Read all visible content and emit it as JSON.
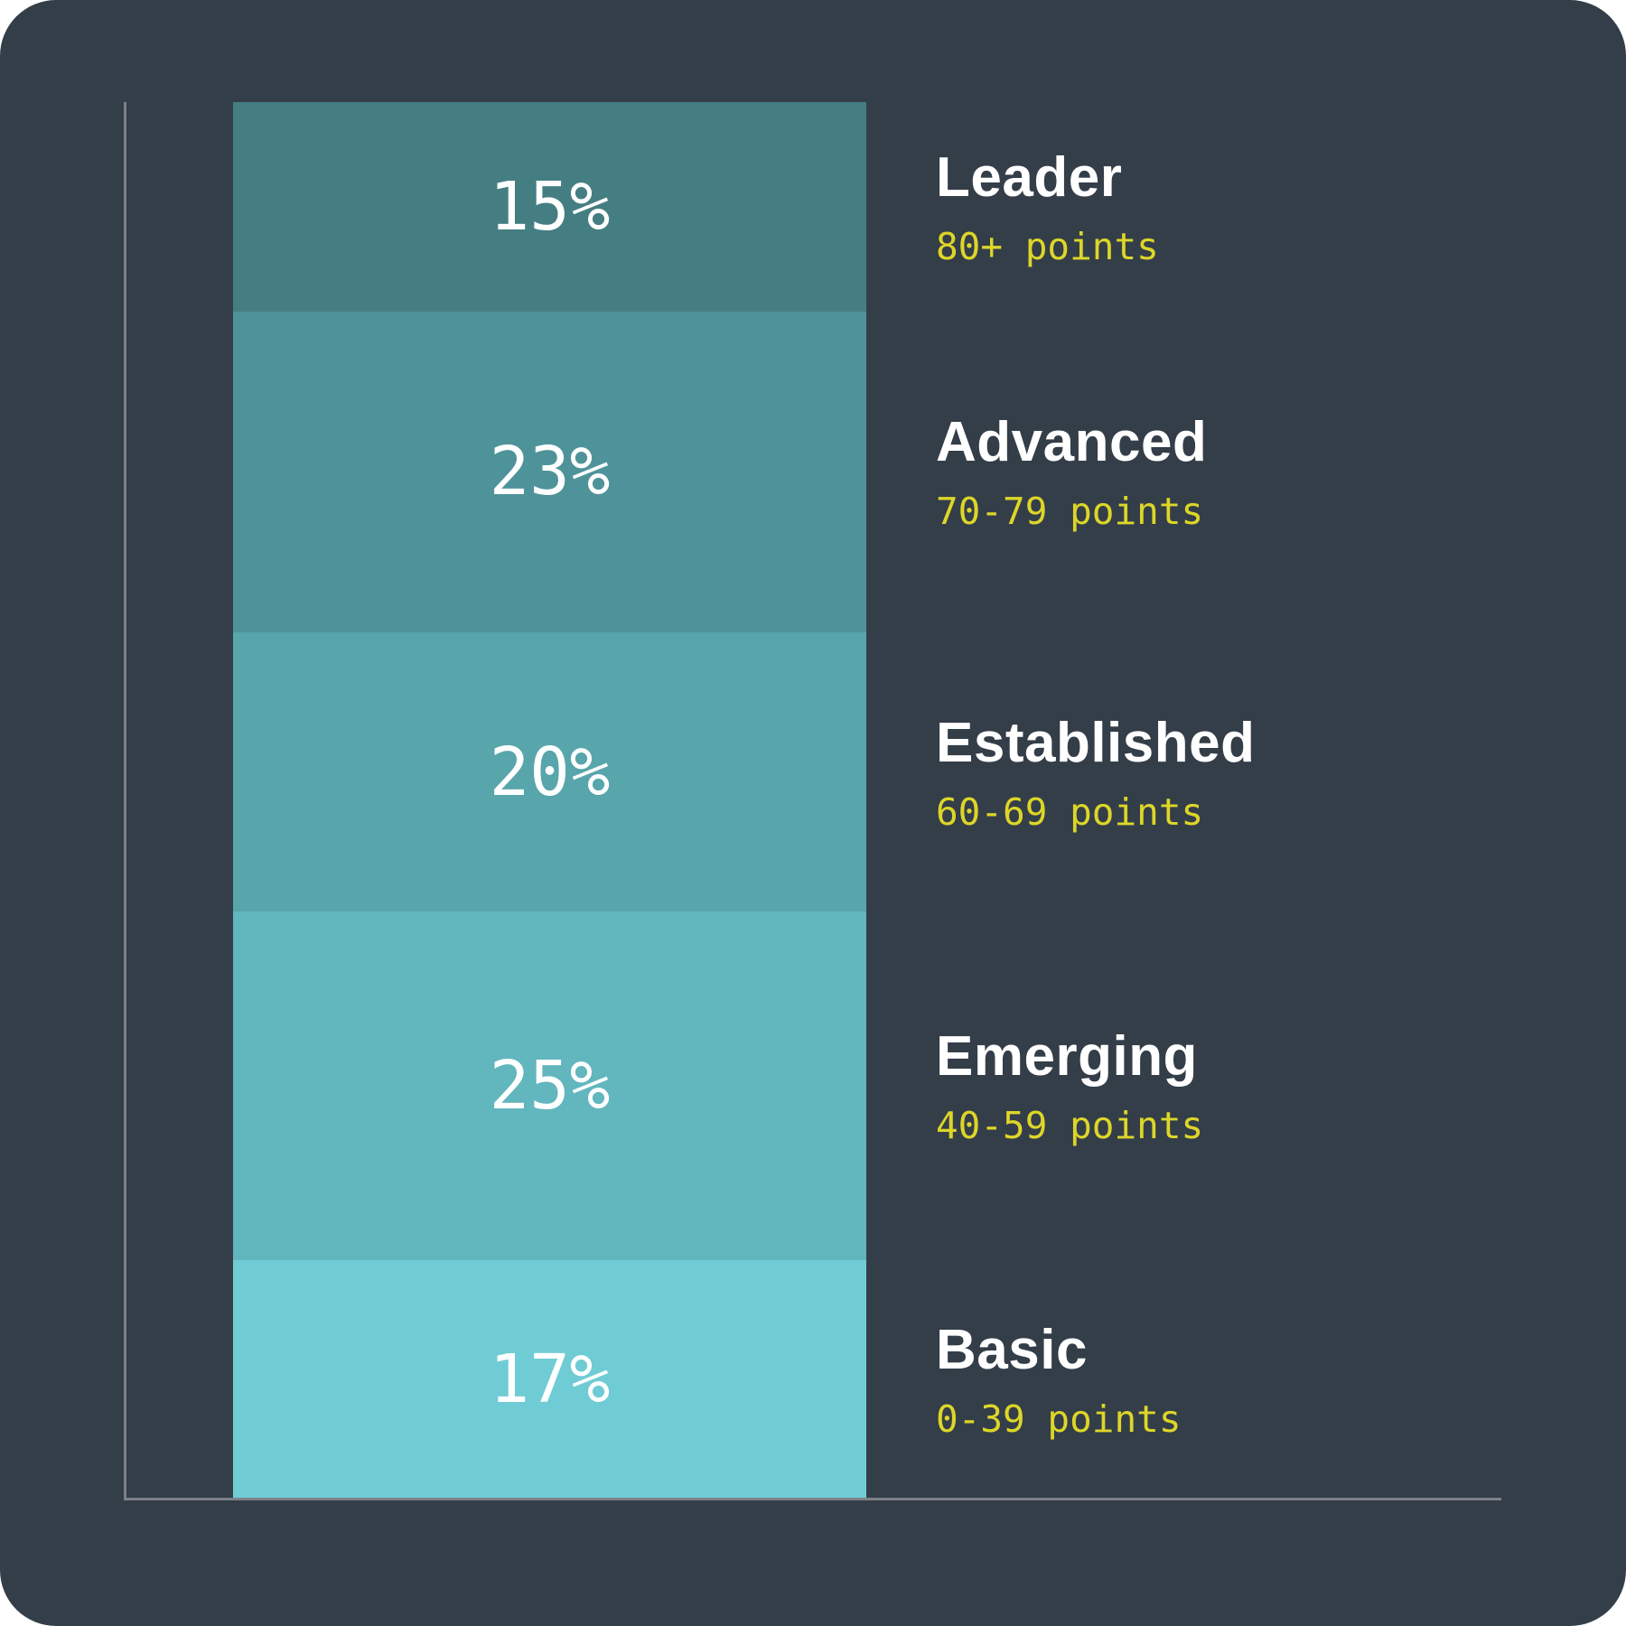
{
  "chart_data": {
    "type": "bar",
    "subtype": "single-column-100pct-stacked",
    "orientation": "vertical",
    "total_pct": 100,
    "grid": false,
    "legend_position": "right-of-bar",
    "segments": [
      {
        "label": "Leader",
        "range": "80+ points",
        "value_pct": 15,
        "value_label": "15%",
        "color": "#447e83"
      },
      {
        "label": "Advanced",
        "range": "70-79 points",
        "value_pct": 23,
        "value_label": "23%",
        "color": "#4f939a"
      },
      {
        "label": "Established",
        "range": "60-69 points",
        "value_pct": 20,
        "value_label": "20%",
        "color": "#58a5ac"
      },
      {
        "label": "Emerging",
        "range": "40-59 points",
        "value_pct": 25,
        "value_label": "25%",
        "color": "#62b6be"
      },
      {
        "label": "Basic",
        "range": "0-39 points",
        "value_pct": 17,
        "value_label": "17%",
        "color": "#6fccd5"
      }
    ],
    "axes": {
      "y_axis_visible": true,
      "x_axis_visible": true,
      "tick_labels": []
    },
    "colors": {
      "background": "#343e49",
      "axis": "#7d8187",
      "tier_name_text": "#ffffff",
      "tier_range_text": "#ddd628",
      "value_text": "#ffffff"
    }
  }
}
